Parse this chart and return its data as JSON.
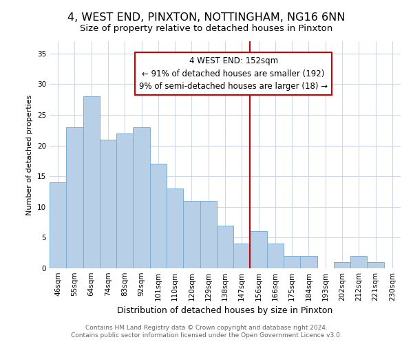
{
  "title": "4, WEST END, PINXTON, NOTTINGHAM, NG16 6NN",
  "subtitle": "Size of property relative to detached houses in Pinxton",
  "xlabel": "Distribution of detached houses by size in Pinxton",
  "ylabel": "Number of detached properties",
  "bar_labels": [
    "46sqm",
    "55sqm",
    "64sqm",
    "74sqm",
    "83sqm",
    "92sqm",
    "101sqm",
    "110sqm",
    "120sqm",
    "129sqm",
    "138sqm",
    "147sqm",
    "156sqm",
    "166sqm",
    "175sqm",
    "184sqm",
    "193sqm",
    "202sqm",
    "212sqm",
    "221sqm",
    "230sqm"
  ],
  "bar_values": [
    14,
    23,
    28,
    21,
    22,
    23,
    17,
    13,
    11,
    11,
    7,
    4,
    6,
    4,
    2,
    2,
    0,
    1,
    2,
    1,
    0
  ],
  "bar_color": "#b8cfe8",
  "bar_edge_color": "#7aadd4",
  "grid_color": "#d0d8e8",
  "background_color": "#ffffff",
  "annotation_line_x_label": "147sqm",
  "annotation_line_color": "#cc0000",
  "annotation_box_text": "4 WEST END: 152sqm\n← 91% of detached houses are smaller (192)\n9% of semi-detached houses are larger (18) →",
  "footer_line1": "Contains HM Land Registry data © Crown copyright and database right 2024.",
  "footer_line2": "Contains public sector information licensed under the Open Government Licence v3.0.",
  "ylim": [
    0,
    37
  ],
  "yticks": [
    0,
    5,
    10,
    15,
    20,
    25,
    30,
    35
  ],
  "title_fontsize": 11.5,
  "subtitle_fontsize": 9.5,
  "xlabel_fontsize": 9,
  "ylabel_fontsize": 8,
  "tick_fontsize": 7.5,
  "annot_fontsize": 8.5,
  "footer_fontsize": 6.5
}
